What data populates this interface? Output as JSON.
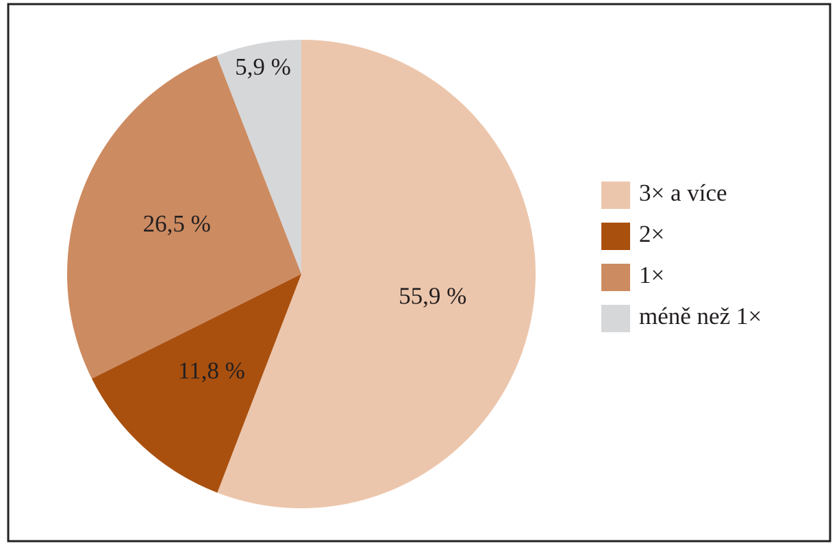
{
  "chart_data": {
    "type": "pie",
    "categories": [
      "3× a více",
      "2×",
      "1×",
      "méně než 1×"
    ],
    "values": [
      55.9,
      11.8,
      26.5,
      5.9
    ],
    "value_labels": [
      "55,9 %",
      "11,8 %",
      "26,5 %",
      "5,9 %"
    ],
    "colors": [
      "#ecc6ac",
      "#a9500f",
      "#cd8b61",
      "#d6d7d9"
    ],
    "legend": "right"
  }
}
